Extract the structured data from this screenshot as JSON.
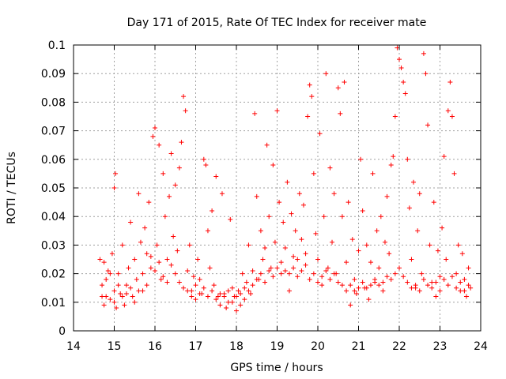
{
  "chart_data": {
    "type": "scatter",
    "title": "Day 171 of 2015, Rate Of TEC Index for receiver mate",
    "xlabel": "GPS time / hours",
    "ylabel": "ROTI / TECUs",
    "xlim": [
      14,
      24
    ],
    "ylim": [
      0,
      0.1
    ],
    "xticks": [
      14,
      15,
      16,
      17,
      18,
      19,
      20,
      21,
      22,
      23,
      24
    ],
    "yticks": [
      0,
      0.01,
      0.02,
      0.03,
      0.04,
      0.05,
      0.06,
      0.07,
      0.08,
      0.09,
      0.1
    ],
    "xtick_labels": [
      "14",
      "15",
      "16",
      "17",
      "18",
      "19",
      "20",
      "21",
      "22",
      "23",
      "24"
    ],
    "ytick_labels": [
      "0",
      "0.01",
      "0.02",
      "0.03",
      "0.04",
      "0.05",
      "0.06",
      "0.07",
      "0.08",
      "0.09",
      "0.1"
    ],
    "grid": true,
    "marker": "+",
    "colors": {
      "points": "#ff0000",
      "grid": "#a0a0a0",
      "axis": "#000000"
    },
    "series": [
      {
        "values_description_note": "",
        "points": [
          [
            14.65,
            0.025
          ],
          [
            14.7,
            0.012
          ],
          [
            14.75,
            0.009
          ],
          [
            14.8,
            0.018
          ],
          [
            14.85,
            0.021
          ],
          [
            14.9,
            0.011
          ],
          [
            14.95,
            0.027
          ],
          [
            15.0,
            0.014
          ],
          [
            15.0,
            0.05
          ],
          [
            15.03,
            0.055
          ],
          [
            15.05,
            0.008
          ],
          [
            15.1,
            0.02
          ],
          [
            15.15,
            0.013
          ],
          [
            15.2,
            0.03
          ],
          [
            15.25,
            0.009
          ],
          [
            15.3,
            0.016
          ],
          [
            15.35,
            0.022
          ],
          [
            15.4,
            0.038
          ],
          [
            15.45,
            0.012
          ],
          [
            15.5,
            0.025
          ],
          [
            15.55,
            0.018
          ],
          [
            15.6,
            0.048
          ],
          [
            15.65,
            0.031
          ],
          [
            15.7,
            0.014
          ],
          [
            15.75,
            0.036
          ],
          [
            15.8,
            0.027
          ],
          [
            15.85,
            0.045
          ],
          [
            15.9,
            0.022
          ],
          [
            15.95,
            0.068
          ],
          [
            16.0,
            0.071
          ],
          [
            16.05,
            0.03
          ],
          [
            16.1,
            0.065
          ],
          [
            16.15,
            0.018
          ],
          [
            16.2,
            0.055
          ],
          [
            16.25,
            0.04
          ],
          [
            16.3,
            0.025
          ],
          [
            16.35,
            0.047
          ],
          [
            16.4,
            0.062
          ],
          [
            16.45,
            0.033
          ],
          [
            16.5,
            0.051
          ],
          [
            16.55,
            0.028
          ],
          [
            16.6,
            0.057
          ],
          [
            16.65,
            0.066
          ],
          [
            16.7,
            0.082
          ],
          [
            16.75,
            0.077
          ],
          [
            16.8,
            0.021
          ],
          [
            16.85,
            0.03
          ],
          [
            16.9,
            0.014
          ],
          [
            16.95,
            0.019
          ],
          [
            17.0,
            0.011
          ],
          [
            17.05,
            0.025
          ],
          [
            17.1,
            0.018
          ],
          [
            17.15,
            0.013
          ],
          [
            17.2,
            0.06
          ],
          [
            17.25,
            0.058
          ],
          [
            17.3,
            0.035
          ],
          [
            17.35,
            0.022
          ],
          [
            17.4,
            0.042
          ],
          [
            17.45,
            0.016
          ],
          [
            17.5,
            0.054
          ],
          [
            17.55,
            0.012
          ],
          [
            17.6,
            0.009
          ],
          [
            17.65,
            0.048
          ],
          [
            17.7,
            0.013
          ],
          [
            17.75,
            0.008
          ],
          [
            17.8,
            0.01
          ],
          [
            17.85,
            0.039
          ],
          [
            17.9,
            0.015
          ],
          [
            17.95,
            0.012
          ],
          [
            18.0,
            0.007
          ],
          [
            18.05,
            0.014
          ],
          [
            18.1,
            0.009
          ],
          [
            18.15,
            0.02
          ],
          [
            18.2,
            0.011
          ],
          [
            18.25,
            0.017
          ],
          [
            18.3,
            0.03
          ],
          [
            18.35,
            0.013
          ],
          [
            18.4,
            0.021
          ],
          [
            18.45,
            0.076
          ],
          [
            18.5,
            0.047
          ],
          [
            18.55,
            0.018
          ],
          [
            18.6,
            0.035
          ],
          [
            18.65,
            0.025
          ],
          [
            18.7,
            0.029
          ],
          [
            18.75,
            0.065
          ],
          [
            18.8,
            0.04
          ],
          [
            18.85,
            0.022
          ],
          [
            18.9,
            0.058
          ],
          [
            18.95,
            0.031
          ],
          [
            19.0,
            0.077
          ],
          [
            19.05,
            0.045
          ],
          [
            19.1,
            0.02
          ],
          [
            19.15,
            0.038
          ],
          [
            19.2,
            0.029
          ],
          [
            19.25,
            0.052
          ],
          [
            19.3,
            0.014
          ],
          [
            19.35,
            0.041
          ],
          [
            19.4,
            0.026
          ],
          [
            19.45,
            0.035
          ],
          [
            19.5,
            0.019
          ],
          [
            19.55,
            0.048
          ],
          [
            19.6,
            0.032
          ],
          [
            19.65,
            0.044
          ],
          [
            19.7,
            0.027
          ],
          [
            19.75,
            0.075
          ],
          [
            19.8,
            0.086
          ],
          [
            19.85,
            0.082
          ],
          [
            19.9,
            0.055
          ],
          [
            19.95,
            0.034
          ],
          [
            20.0,
            0.025
          ],
          [
            20.05,
            0.069
          ],
          [
            20.1,
            0.016
          ],
          [
            20.15,
            0.04
          ],
          [
            20.2,
            0.09
          ],
          [
            20.25,
            0.022
          ],
          [
            20.3,
            0.057
          ],
          [
            20.35,
            0.031
          ],
          [
            20.4,
            0.048
          ],
          [
            20.45,
            0.02
          ],
          [
            20.5,
            0.085
          ],
          [
            20.55,
            0.076
          ],
          [
            20.6,
            0.04
          ],
          [
            20.65,
            0.087
          ],
          [
            20.7,
            0.024
          ],
          [
            20.75,
            0.045
          ],
          [
            20.8,
            0.009
          ],
          [
            20.85,
            0.032
          ],
          [
            20.9,
            0.018
          ],
          [
            20.95,
            0.013
          ],
          [
            21.0,
            0.028
          ],
          [
            21.05,
            0.06
          ],
          [
            21.1,
            0.042
          ],
          [
            21.15,
            0.015
          ],
          [
            21.2,
            0.03
          ],
          [
            21.25,
            0.011
          ],
          [
            21.3,
            0.024
          ],
          [
            21.35,
            0.055
          ],
          [
            21.4,
            0.017
          ],
          [
            21.45,
            0.035
          ],
          [
            21.5,
            0.022
          ],
          [
            21.55,
            0.04
          ],
          [
            21.6,
            0.014
          ],
          [
            21.65,
            0.031
          ],
          [
            21.7,
            0.047
          ],
          [
            21.75,
            0.027
          ],
          [
            21.8,
            0.058
          ],
          [
            21.85,
            0.061
          ],
          [
            21.9,
            0.075
          ],
          [
            21.95,
            0.099
          ],
          [
            22.0,
            0.095
          ],
          [
            22.05,
            0.092
          ],
          [
            22.1,
            0.087
          ],
          [
            22.15,
            0.083
          ],
          [
            22.2,
            0.06
          ],
          [
            22.25,
            0.043
          ],
          [
            22.3,
            0.025
          ],
          [
            22.35,
            0.052
          ],
          [
            22.4,
            0.015
          ],
          [
            22.45,
            0.035
          ],
          [
            22.5,
            0.048
          ],
          [
            22.55,
            0.02
          ],
          [
            22.6,
            0.097
          ],
          [
            22.65,
            0.09
          ],
          [
            22.7,
            0.072
          ],
          [
            22.75,
            0.03
          ],
          [
            22.8,
            0.017
          ],
          [
            22.85,
            0.045
          ],
          [
            22.9,
            0.012
          ],
          [
            22.95,
            0.028
          ],
          [
            23.0,
            0.019
          ],
          [
            23.05,
            0.036
          ],
          [
            23.1,
            0.061
          ],
          [
            23.15,
            0.025
          ],
          [
            23.2,
            0.077
          ],
          [
            23.25,
            0.087
          ],
          [
            23.3,
            0.075
          ],
          [
            23.35,
            0.055
          ],
          [
            23.4,
            0.02
          ],
          [
            23.45,
            0.03
          ],
          [
            23.5,
            0.014
          ],
          [
            23.55,
            0.027
          ],
          [
            23.6,
            0.018
          ],
          [
            23.65,
            0.012
          ],
          [
            23.7,
            0.022
          ],
          [
            23.75,
            0.015
          ],
          [
            14.7,
            0.016
          ],
          [
            14.75,
            0.024
          ],
          [
            14.8,
            0.012
          ],
          [
            14.9,
            0.02
          ],
          [
            15.0,
            0.01
          ],
          [
            15.1,
            0.016
          ],
          [
            15.2,
            0.012
          ],
          [
            15.3,
            0.013
          ],
          [
            15.4,
            0.015
          ],
          [
            15.5,
            0.01
          ],
          [
            15.6,
            0.014
          ],
          [
            15.7,
            0.02
          ],
          [
            15.8,
            0.016
          ],
          [
            15.9,
            0.026
          ],
          [
            16.0,
            0.021
          ],
          [
            16.1,
            0.024
          ],
          [
            16.2,
            0.019
          ],
          [
            16.3,
            0.017
          ],
          [
            16.4,
            0.023
          ],
          [
            16.5,
            0.02
          ],
          [
            16.6,
            0.017
          ],
          [
            16.7,
            0.015
          ],
          [
            16.8,
            0.014
          ],
          [
            16.9,
            0.012
          ],
          [
            17.0,
            0.016
          ],
          [
            17.1,
            0.013
          ],
          [
            17.2,
            0.015
          ],
          [
            17.3,
            0.012
          ],
          [
            17.4,
            0.014
          ],
          [
            17.5,
            0.011
          ],
          [
            17.6,
            0.013
          ],
          [
            17.7,
            0.012
          ],
          [
            17.8,
            0.014
          ],
          [
            17.9,
            0.01
          ],
          [
            18.0,
            0.012
          ],
          [
            18.1,
            0.013
          ],
          [
            18.2,
            0.015
          ],
          [
            18.3,
            0.014
          ],
          [
            18.4,
            0.016
          ],
          [
            18.5,
            0.018
          ],
          [
            18.6,
            0.02
          ],
          [
            18.7,
            0.017
          ],
          [
            18.8,
            0.021
          ],
          [
            18.9,
            0.019
          ],
          [
            19.0,
            0.022
          ],
          [
            19.1,
            0.024
          ],
          [
            19.2,
            0.021
          ],
          [
            19.3,
            0.02
          ],
          [
            19.4,
            0.022
          ],
          [
            19.5,
            0.025
          ],
          [
            19.6,
            0.021
          ],
          [
            19.7,
            0.023
          ],
          [
            19.8,
            0.018
          ],
          [
            19.9,
            0.02
          ],
          [
            20.0,
            0.017
          ],
          [
            20.1,
            0.019
          ],
          [
            20.2,
            0.021
          ],
          [
            20.3,
            0.018
          ],
          [
            20.4,
            0.02
          ],
          [
            20.5,
            0.017
          ],
          [
            20.6,
            0.016
          ],
          [
            20.7,
            0.014
          ],
          [
            20.8,
            0.016
          ],
          [
            20.9,
            0.014
          ],
          [
            21.0,
            0.015
          ],
          [
            21.1,
            0.017
          ],
          [
            21.2,
            0.015
          ],
          [
            21.3,
            0.016
          ],
          [
            21.4,
            0.018
          ],
          [
            21.5,
            0.016
          ],
          [
            21.6,
            0.017
          ],
          [
            21.7,
            0.019
          ],
          [
            21.8,
            0.018
          ],
          [
            21.9,
            0.02
          ],
          [
            22.0,
            0.022
          ],
          [
            22.1,
            0.019
          ],
          [
            22.2,
            0.017
          ],
          [
            22.3,
            0.015
          ],
          [
            22.4,
            0.016
          ],
          [
            22.5,
            0.014
          ],
          [
            22.6,
            0.018
          ],
          [
            22.7,
            0.016
          ],
          [
            22.8,
            0.015
          ],
          [
            22.9,
            0.017
          ],
          [
            23.0,
            0.014
          ],
          [
            23.1,
            0.018
          ],
          [
            23.2,
            0.016
          ],
          [
            23.3,
            0.019
          ],
          [
            23.4,
            0.015
          ],
          [
            23.5,
            0.017
          ],
          [
            23.6,
            0.014
          ],
          [
            23.7,
            0.016
          ]
        ]
      }
    ]
  }
}
